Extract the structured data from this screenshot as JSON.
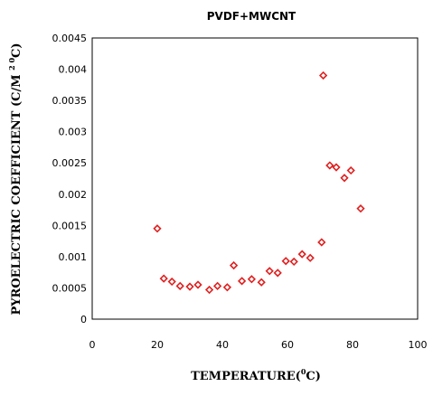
{
  "chart_data": {
    "type": "scatter",
    "title": "PVDF+MWCNT",
    "xlabel_main": "TEMPERATURE(",
    "xlabel_sup": "0",
    "xlabel_tail": "C)",
    "ylabel_main": "PYROELECTRIC COEFFICIENT (C/M ",
    "ylabel_sup1": "2 0",
    "ylabel_tail": "C)",
    "xlim": [
      0,
      100
    ],
    "ylim": [
      0,
      0.0045
    ],
    "x_ticks": [
      "0",
      "20",
      "40",
      "60",
      "80",
      "100"
    ],
    "y_ticks": [
      "0",
      "0.0005",
      "0.001",
      "0.0015",
      "0.002",
      "0.0025",
      "0.003",
      "0.0035",
      "0.004",
      "0.0045"
    ],
    "grid": false,
    "marker_color": "#e02020",
    "marker": "diamond",
    "series": [
      {
        "x": [
          20,
          22,
          24.5,
          27,
          30,
          32.5,
          36,
          38.5,
          41.5,
          43.5,
          46,
          49,
          52,
          54.5,
          57,
          59.5,
          62,
          64.5,
          67,
          70.5,
          71,
          73,
          75,
          77.5,
          79.5,
          82.5
        ],
        "y": [
          0.00145,
          0.00065,
          0.0006,
          0.00053,
          0.00052,
          0.00055,
          0.00047,
          0.00053,
          0.00051,
          0.00086,
          0.00061,
          0.00064,
          0.00059,
          0.00077,
          0.00074,
          0.00093,
          0.00092,
          0.00104,
          0.00098,
          0.00123,
          0.0039,
          0.00246,
          0.00243,
          0.00226,
          0.00238,
          0.00177
        ]
      }
    ]
  }
}
